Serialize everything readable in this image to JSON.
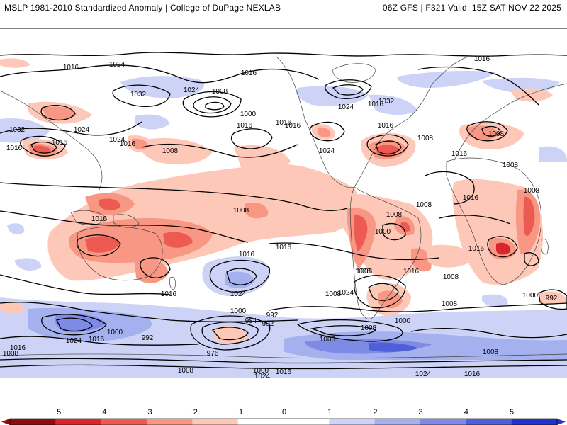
{
  "header": {
    "left": "MSLP 1981-2010 Standardized Anomaly | College of DuPage NEXLAB",
    "right": "06Z GFS | F321 Valid: 15Z SAT NOV 22 2025"
  },
  "colors": {
    "neg5": "#8e0b10",
    "neg4": "#d8262a",
    "neg3": "#ec5a52",
    "neg2": "#f79784",
    "neg1": "#fdc8b8",
    "pos1": "#cdd3f6",
    "pos2": "#a5b0ee",
    "pos3": "#7e8be4",
    "pos4": "#4f5fd8",
    "pos5": "#2432cc"
  },
  "map": {
    "contour_labels": [
      "1016",
      "1024",
      "1016",
      "1016",
      "1032",
      "1024",
      "1008",
      "1000",
      "1016",
      "1016",
      "1024",
      "1032",
      "1016",
      "1024",
      "1016",
      "1032",
      "1024",
      "1016",
      "1016",
      "1008",
      "1016",
      "1024",
      "1016",
      "1008",
      "1016",
      "1008",
      "1008",
      "1008",
      "1016",
      "1016",
      "1008",
      "1016",
      "1008",
      "1016",
      "1008",
      "1008",
      "1024",
      "1024",
      "1016",
      "1008",
      "1008",
      "1000",
      "1016",
      "1008",
      "1008",
      "1000",
      "992",
      "984",
      "1000",
      "992",
      "1024",
      "1016",
      "1000",
      "992",
      "976",
      "1008",
      "1000",
      "1024",
      "1016",
      "1000",
      "1024",
      "1016",
      "1008",
      "1016",
      "1008",
      "1016",
      "1000",
      "992",
      "1008"
    ]
  },
  "colorbar": {
    "ticks": [
      "−5",
      "−4",
      "−3",
      "−2",
      "−1",
      "0",
      "1",
      "2",
      "3",
      "4",
      "5"
    ]
  }
}
